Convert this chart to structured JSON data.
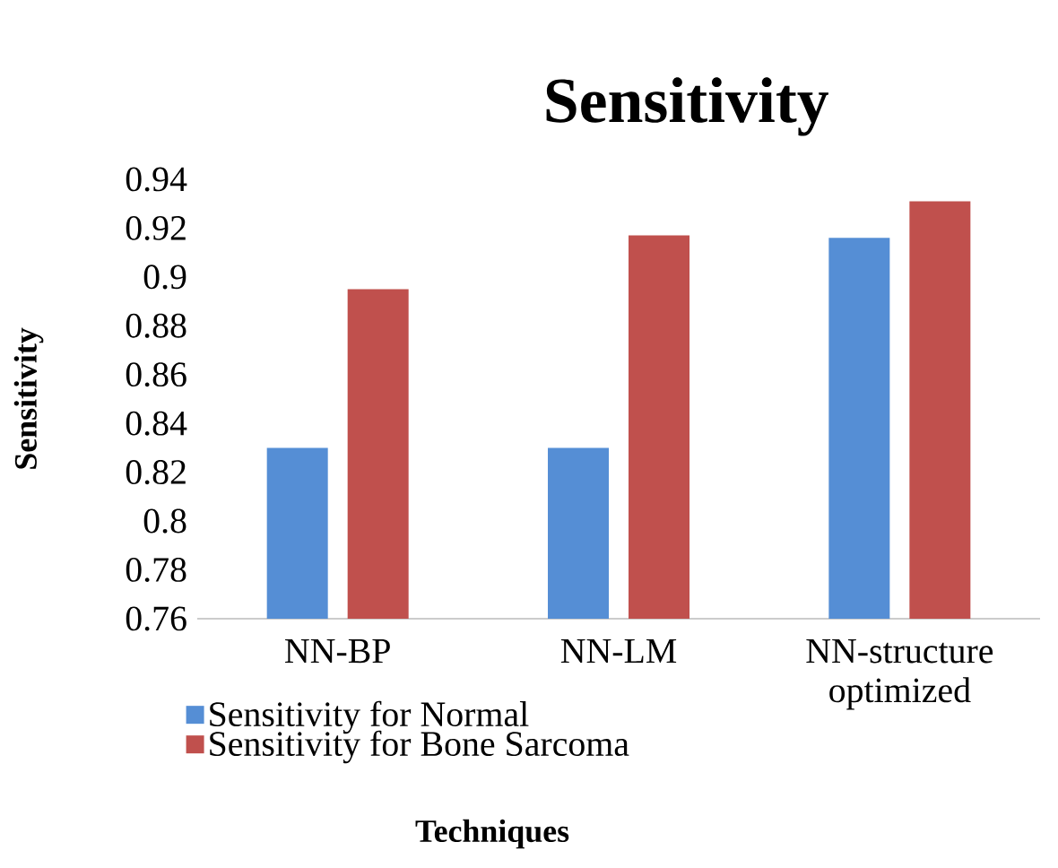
{
  "chart_data": {
    "type": "bar",
    "title": "Sensitivity",
    "xlabel": "Techniques",
    "ylabel": "Sensitivity",
    "categories": [
      "NN-BP",
      "NN-LM",
      "NN-structure optimized"
    ],
    "series": [
      {
        "name": "Sensitivity for Normal",
        "color": "#558ed5",
        "values": [
          0.83,
          0.83,
          0.916
        ]
      },
      {
        "name": "Sensitivity for  Bone Sarcoma",
        "color": "#c0504d",
        "values": [
          0.895,
          0.917,
          0.931
        ]
      }
    ],
    "ylim": [
      0.76,
      0.94
    ],
    "yticks": [
      0.76,
      0.78,
      0.8,
      0.82,
      0.84,
      0.86,
      0.88,
      0.9,
      0.92,
      0.94
    ],
    "grid": false,
    "legend": "bottom left"
  }
}
